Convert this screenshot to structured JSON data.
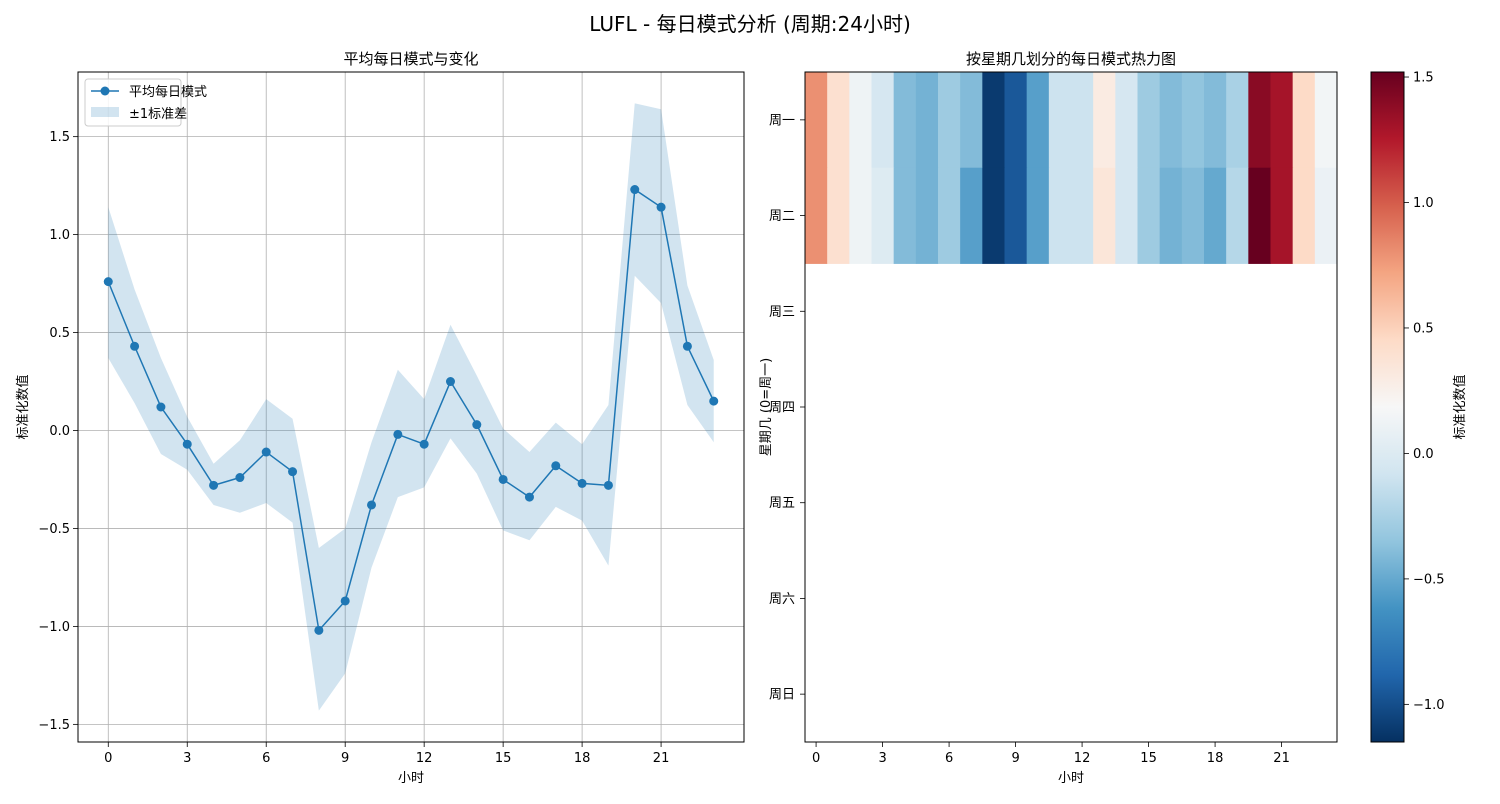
{
  "figure": {
    "title": "LUFL - 每日模式分析 (周期:24小时)"
  },
  "colors": {
    "line": "#1f77b4",
    "band": "#1f77b4",
    "grid": "#b0b0b0",
    "colormap": "RdBu_r"
  },
  "chart_data": [
    {
      "type": "line",
      "title": "平均每日模式与变化",
      "xlabel": "小时",
      "ylabel": "标准化数值",
      "xlim": [
        -1.15,
        24.15
      ],
      "ylim": [
        -1.59,
        1.83
      ],
      "xticks": [
        0,
        3,
        6,
        9,
        12,
        15,
        18,
        21
      ],
      "yticks": [
        -1.5,
        -1.0,
        -0.5,
        0.0,
        0.5,
        1.0,
        1.5
      ],
      "ytick_labels": [
        "−1.5",
        "−1.0",
        "−0.5",
        "0.0",
        "0.5",
        "1.0",
        "1.5"
      ],
      "grid": true,
      "legend": {
        "position": "top-left",
        "entries": [
          "平均每日模式",
          "±1标准差"
        ]
      },
      "series": [
        {
          "name": "平均每日模式",
          "x": [
            0,
            1,
            2,
            3,
            4,
            5,
            6,
            7,
            8,
            9,
            10,
            11,
            12,
            13,
            14,
            15,
            16,
            17,
            18,
            19,
            20,
            21,
            22,
            23
          ],
          "values": [
            0.76,
            0.43,
            0.12,
            -0.07,
            -0.28,
            -0.24,
            -0.11,
            -0.21,
            -1.02,
            -0.87,
            -0.38,
            -0.02,
            -0.07,
            0.25,
            0.03,
            -0.25,
            -0.34,
            -0.18,
            -0.27,
            -0.28,
            1.23,
            1.14,
            0.43,
            0.15
          ]
        }
      ],
      "band": {
        "name": "±1标准差",
        "upper": [
          1.14,
          0.72,
          0.37,
          0.07,
          -0.17,
          -0.05,
          0.16,
          0.06,
          -0.6,
          -0.5,
          -0.06,
          0.31,
          0.16,
          0.54,
          0.28,
          0.01,
          -0.11,
          0.04,
          -0.07,
          0.13,
          1.67,
          1.64,
          0.74,
          0.36
        ],
        "lower": [
          0.37,
          0.14,
          -0.12,
          -0.2,
          -0.38,
          -0.42,
          -0.37,
          -0.47,
          -1.43,
          -1.24,
          -0.7,
          -0.34,
          -0.29,
          -0.04,
          -0.22,
          -0.51,
          -0.56,
          -0.39,
          -0.46,
          -0.69,
          0.79,
          0.65,
          0.13,
          -0.06
        ]
      }
    },
    {
      "type": "heatmap",
      "title": "按星期几划分的每日模式热力图",
      "xlabel": "小时",
      "ylabel": "星期几 (0=周一)",
      "xticks": [
        0,
        3,
        6,
        9,
        12,
        15,
        18,
        21
      ],
      "y_categories": [
        "周一",
        "周二",
        "周三",
        "周四",
        "周五",
        "周六",
        "周日"
      ],
      "colorbar": {
        "label": "标准化数值",
        "vmin": -1.15,
        "vmax": 1.52,
        "ticks": [
          -1.0,
          -0.5,
          0.0,
          0.5,
          1.0,
          1.5
        ],
        "tick_labels": [
          "−1.0",
          "−0.5",
          "0.0",
          "0.5",
          "1.0",
          "1.5"
        ]
      },
      "values": [
        [
          0.8,
          0.4,
          0.12,
          -0.05,
          -0.4,
          -0.45,
          -0.3,
          -0.4,
          -1.1,
          -0.95,
          -0.55,
          -0.1,
          -0.1,
          0.3,
          -0.05,
          -0.3,
          -0.4,
          -0.35,
          -0.4,
          -0.25,
          1.4,
          1.3,
          0.45,
          0.15
        ],
        [
          0.8,
          0.4,
          0.12,
          0.0,
          -0.4,
          -0.45,
          -0.3,
          -0.55,
          -1.1,
          -0.95,
          -0.55,
          -0.1,
          -0.1,
          0.35,
          -0.05,
          -0.3,
          -0.45,
          -0.4,
          -0.5,
          -0.2,
          1.52,
          1.3,
          0.45,
          0.1
        ]
      ]
    }
  ]
}
